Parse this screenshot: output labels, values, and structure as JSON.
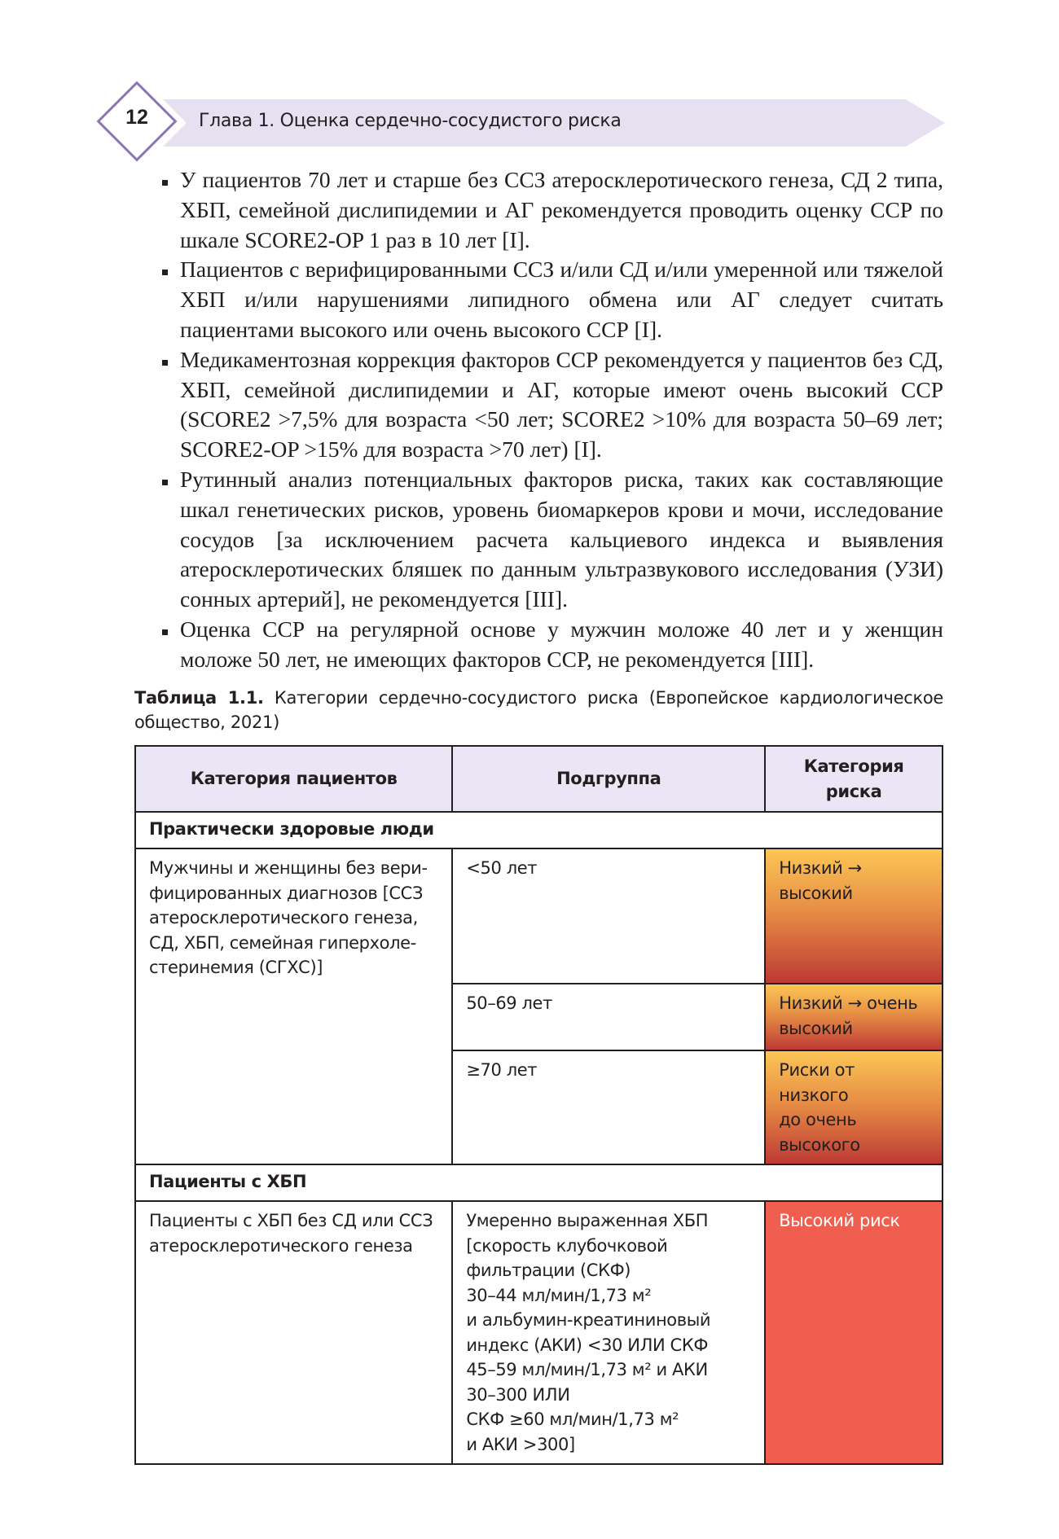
{
  "header": {
    "page_number": "12",
    "chapter": "Глава 1. Оценка сердечно-сосудистого риска"
  },
  "bullets": [
    "У пациентов 70 лет и старше без ССЗ атеросклеротического генеза, СД 2 типа, ХБП, семейной дислипидемии и АГ рекомендуется проводить оценку ССР по шкале SCORE2-OP 1 раз в 10 лет [I].",
    "Пациентов с верифицированными ССЗ и/или СД и/или умеренной или тяжелой ХБП и/или нарушениями липидного обмена или АГ следует считать пациентами высокого или очень высокого ССР [I].",
    "Медикаментозная коррекция факторов ССР рекомендуется у пациентов без СД, ХБП, семейной дислипидемии и АГ, которые имеют очень высокий ССР (SCORE2 >7,5% для возраста <50 лет; SCORE2 >10% для возраста 50–69 лет; SCORE2-OP >15% для возраста >70 лет) [I].",
    "Рутинный анализ потенциальных факторов риска, таких как составляющие шкал генетических рисков, уровень биомаркеров крови и мочи, исследование сосудов [за исключением расчета кальциевого индекса и выявления атеросклеротических бляшек по данным ультразвукового исследования (УЗИ) сонных артерий], не рекомендуется [III].",
    "Оценка ССР на регулярной основе у мужчин моложе 40 лет и у женщин моложе 50 лет, не имеющих факторов ССР, не рекомендуется [III]."
  ],
  "table": {
    "caption_label": "Таблица 1.1.",
    "caption_text": " Категории сердечно-сосудистого риска (Европейское кардиологическое общество, 2021)",
    "headers": [
      "Категория пациентов",
      "Подгруппа",
      "Категория риска"
    ],
    "section1": "Практически здоровые люди",
    "row1_category": [
      "Мужчины и женщины без вери-",
      "фицированных диагнозов [ССЗ",
      "атеросклеротического генеза,",
      "СД, ХБП, семейная гиперхоле-",
      "стеринемия (СГХС)]"
    ],
    "sub1": "<50 лет",
    "risk1": [
      "Низкий →",
      "высокий"
    ],
    "sub2": "50–69 лет",
    "risk2": [
      "Низкий → очень",
      "высокий"
    ],
    "sub3": "≥70 лет",
    "risk3": [
      "Риски от низкого",
      "до очень",
      "высокого"
    ],
    "section2": "Пациенты с ХБП",
    "row2_category": [
      "Пациенты с ХБП без СД или ССЗ",
      "атеросклеротического генеза"
    ],
    "row2_sub": [
      "Умеренно выраженная ХБП",
      "[скорость клубочковой",
      "фильтрации (СКФ)",
      "30–44 мл/мин/1,73 м²",
      "и альбумин-креатининовый",
      "индекс (АКИ) <30 ИЛИ СКФ",
      "45–59 мл/мин/1,73 м² и АКИ",
      "30–300 ИЛИ",
      "СКФ ≥60 мл/мин/1,73 м²",
      "и АКИ >300]"
    ],
    "row2_risk": "Высокий риск"
  },
  "colors": {
    "banner": "#e6e0f1",
    "diamond_border": "#8a76b5",
    "table_header": "#ebe6f5",
    "high_risk": "#ef5e4e",
    "gradient_top": "#fcc655",
    "gradient_bottom": "#be3a35"
  }
}
